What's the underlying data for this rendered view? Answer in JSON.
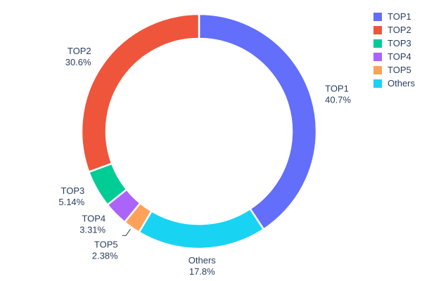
{
  "chart_data": {
    "type": "pie",
    "subtype": "donut",
    "hole": 0.79,
    "title": "",
    "background": "#ffffff",
    "text_color": "#2a3f5f",
    "labels": [
      "TOP1",
      "TOP2",
      "TOP3",
      "TOP4",
      "TOP5",
      "Others"
    ],
    "values": [
      40.7,
      30.6,
      5.14,
      3.31,
      2.38,
      17.8
    ],
    "percent_labels": [
      "40.7%",
      "30.6%",
      "5.14%",
      "3.31%",
      "2.38%",
      "17.8%"
    ],
    "colors": [
      "#636EFA",
      "#EF553B",
      "#00CC96",
      "#AB63FA",
      "#FFA15A",
      "#19D3F3"
    ],
    "clockwise_order": [
      "TOP1",
      "Others",
      "TOP5",
      "TOP4",
      "TOP3",
      "TOP2"
    ],
    "start_angle_deg": 0,
    "legend": {
      "position": "top-right",
      "entries": [
        "TOP1",
        "TOP2",
        "TOP3",
        "TOP4",
        "TOP5",
        "Others"
      ]
    }
  }
}
